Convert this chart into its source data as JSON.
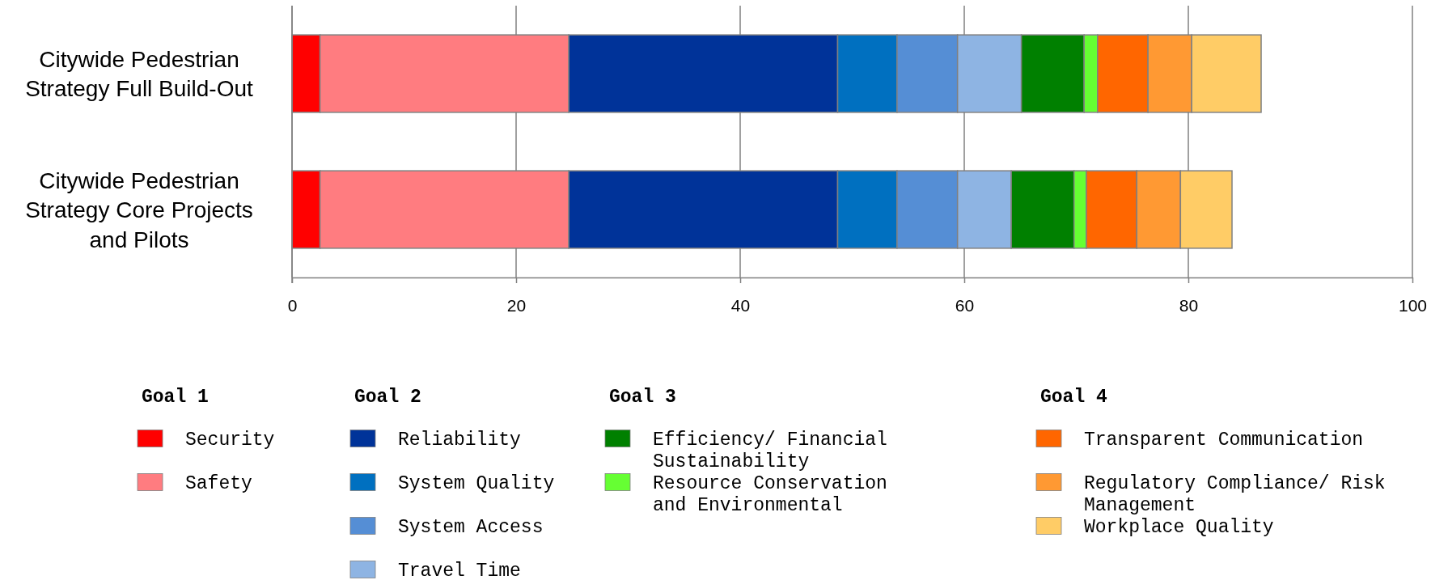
{
  "chart_data": {
    "type": "bar",
    "orientation": "horizontal",
    "stacked": true,
    "categories": [
      "Citywide Pedestrian Strategy Full Build-Out",
      "Citywide Pedestrian Strategy Core Projects and Pilots"
    ],
    "series": [
      {
        "name": "Security",
        "color": "#ff0000",
        "values": [
          2.5,
          2.5
        ]
      },
      {
        "name": "Safety",
        "color": "#ff7c80",
        "values": [
          22.2,
          22.2
        ]
      },
      {
        "name": "Reliability",
        "color": "#003399",
        "values": [
          24.0,
          24.0
        ]
      },
      {
        "name": "System Quality",
        "color": "#0070c0",
        "values": [
          5.3,
          5.3
        ]
      },
      {
        "name": "System Access",
        "color": "#558ed5",
        "values": [
          5.4,
          5.4
        ]
      },
      {
        "name": "Travel Time",
        "color": "#8eb4e3",
        "values": [
          5.7,
          4.8
        ]
      },
      {
        "name": "Efficiency/ Financial Sustainability",
        "color": "#008000",
        "values": [
          5.6,
          5.6
        ]
      },
      {
        "name": "Resource Conservation and Environmental",
        "color": "#66ff33",
        "values": [
          1.2,
          1.1
        ]
      },
      {
        "name": "Transparent Communication",
        "color": "#ff6600",
        "values": [
          4.5,
          4.5
        ]
      },
      {
        "name": "Regulatory Compliance/ Risk Management",
        "color": "#ff9933",
        "values": [
          3.9,
          3.9
        ]
      },
      {
        "name": "Workplace Quality",
        "color": "#ffcc66",
        "values": [
          6.2,
          4.6
        ]
      }
    ],
    "xlim": [
      0,
      100
    ],
    "xticks": [
      0,
      20,
      40,
      60,
      80,
      100
    ],
    "grid": "x",
    "legend": "bottom",
    "annotations": [
      "Goal 1",
      "Goal 2",
      "Goal 3",
      "Goal 4"
    ]
  }
}
